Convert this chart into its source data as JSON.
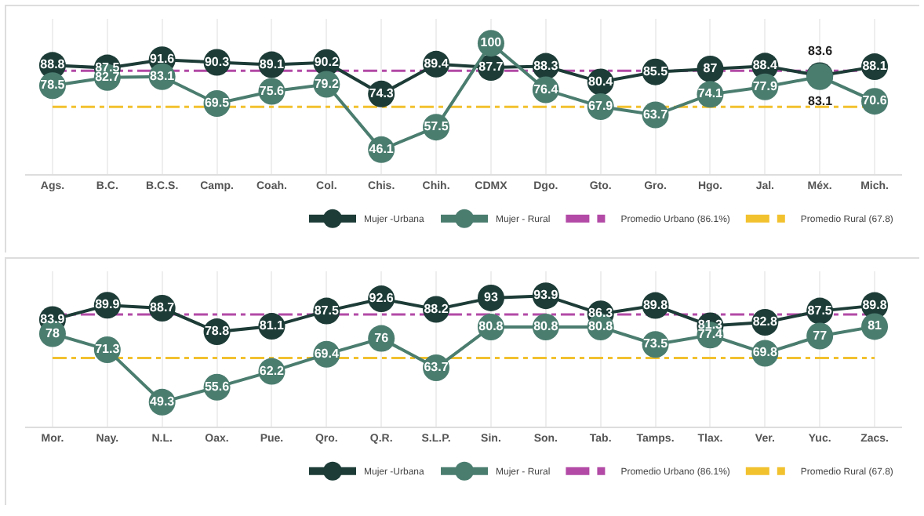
{
  "chart_data": [
    {
      "type": "line",
      "categories": [
        "Ags.",
        "B.C.",
        "B.C.S.",
        "Camp.",
        "Coah.",
        "Col.",
        "Chis.",
        "Chih.",
        "CDMX",
        "Dgo.",
        "Gto.",
        "Gro.",
        "Hgo.",
        "Jal.",
        "Méx.",
        "Mich."
      ],
      "series": [
        {
          "name": "Mujer -Urbana",
          "color": "#1d3c37",
          "values": [
            88.8,
            87.5,
            91.6,
            90.3,
            89.1,
            90.2,
            74.3,
            89.4,
            87.7,
            88.3,
            80.4,
            85.5,
            87,
            88.4,
            83.6,
            88.1
          ]
        },
        {
          "name": "Mujer - Rural",
          "color": "#4b7d6f",
          "values": [
            78.5,
            82.7,
            83.1,
            69.5,
            75.6,
            79.2,
            46.1,
            57.5,
            100,
            76.4,
            67.9,
            63.7,
            74.1,
            77.9,
            83.1,
            70.6
          ]
        }
      ],
      "ref_lines": [
        {
          "axis": "y",
          "value": 86.1,
          "label": "Promedio Urbano (86.1%)",
          "color": "#b24aa6",
          "line_style": "dashdot"
        },
        {
          "axis": "y",
          "value": 67.8,
          "label": "Promedio Rural (67.8)",
          "color": "#f2c12e",
          "line_style": "dashdot"
        }
      ],
      "tick_labels": "x",
      "grid": "x",
      "legend": "bottom right",
      "marker": "circle",
      "data_labels": true
    },
    {
      "type": "line",
      "categories": [
        "Mor.",
        "Nay.",
        "N.L.",
        "Oax.",
        "Pue.",
        "Qro.",
        "Q.R.",
        "S.L.P.",
        "Sin.",
        "Son.",
        "Tab.",
        "Tamps.",
        "Tlax.",
        "Ver.",
        "Yuc.",
        "Zacs."
      ],
      "series": [
        {
          "name": "Mujer -Urbana",
          "color": "#1d3c37",
          "values": [
            83.9,
            89.9,
            88.7,
            78.8,
            81.1,
            87.5,
            92.6,
            88.2,
            93,
            93.9,
            86.3,
            89.8,
            81.3,
            82.8,
            87.5,
            89.8
          ]
        },
        {
          "name": "Mujer - Rural",
          "color": "#4b7d6f",
          "values": [
            78,
            71.3,
            49.3,
            55.6,
            62.2,
            69.4,
            76,
            63.7,
            80.8,
            80.8,
            80.8,
            73.5,
            77.4,
            69.8,
            77,
            81
          ]
        }
      ],
      "ref_lines": [
        {
          "axis": "y",
          "value": 86.1,
          "label": "Promedio Urbano (86.1%)",
          "color": "#b24aa6",
          "line_style": "dashdot"
        },
        {
          "axis": "y",
          "value": 67.8,
          "label": "Promedio Rural (67.8)",
          "color": "#f2c12e",
          "line_style": "dashdot"
        }
      ],
      "tick_labels": "x",
      "grid": "x",
      "legend": "bottom right",
      "marker": "circle",
      "data_labels": true
    }
  ]
}
